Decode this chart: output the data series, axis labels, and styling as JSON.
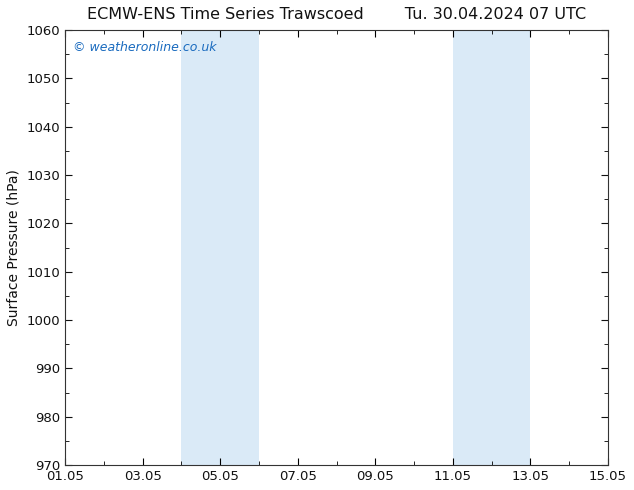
{
  "title_left": "ECMW-ENS Time Series Trawscoed",
  "title_right": "Tu. 30.04.2024 07 UTC",
  "ylabel": "Surface Pressure (hPa)",
  "ylim": [
    970,
    1060
  ],
  "ytick_step": 10,
  "x_start": "2024-05-01",
  "x_end": "2024-05-15",
  "xtick_labels": [
    "01.05",
    "03.05",
    "05.05",
    "07.05",
    "09.05",
    "11.05",
    "13.05",
    "15.05"
  ],
  "xtick_positions_days": [
    0,
    2,
    4,
    6,
    8,
    10,
    12,
    14
  ],
  "shaded_bands": [
    {
      "x_start_day": 3.0,
      "x_end_day": 5.0
    },
    {
      "x_start_day": 10.0,
      "x_end_day": 12.0
    }
  ],
  "band_color": "#daeaf7",
  "background_color": "#ffffff",
  "plot_bg_color": "#ffffff",
  "watermark_text": "© weatheronline.co.uk",
  "watermark_color": "#1a6bbf",
  "title_fontsize": 11.5,
  "axis_label_fontsize": 10,
  "tick_fontsize": 9.5,
  "watermark_fontsize": 9,
  "spine_color": "#333333",
  "tick_color": "#111111",
  "title_color": "#111111"
}
